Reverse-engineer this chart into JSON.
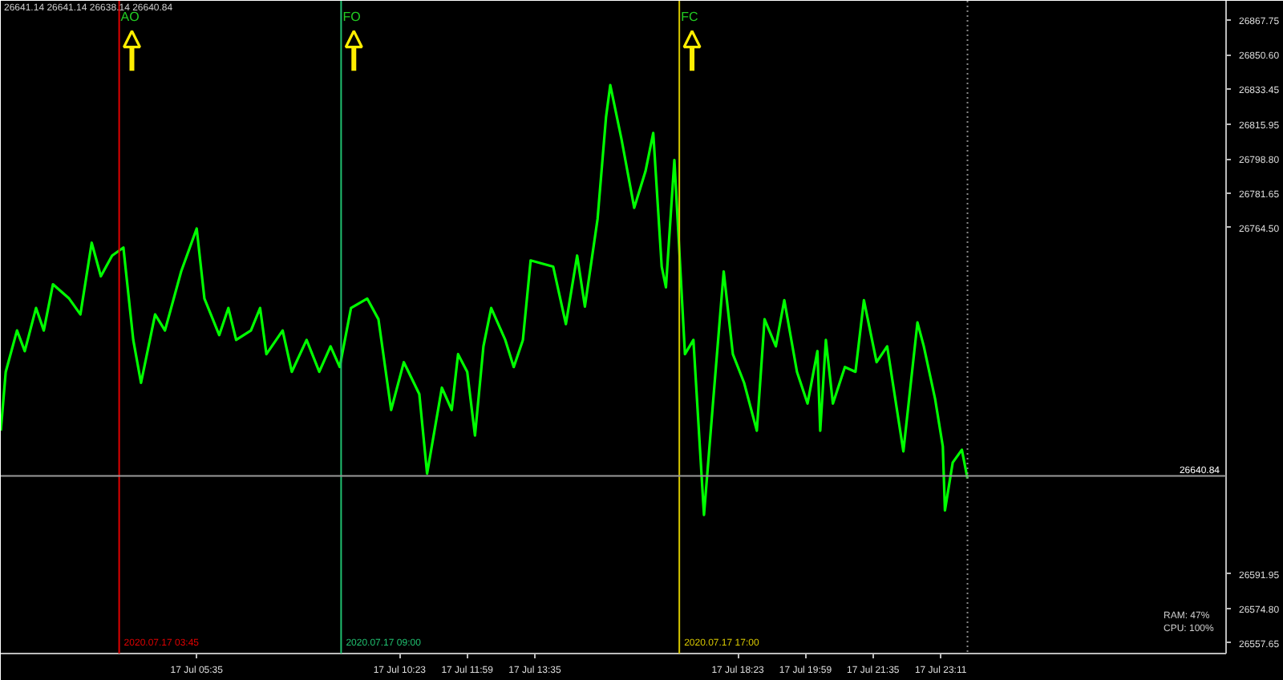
{
  "chart_data": {
    "type": "line",
    "annotations": [
      "26641.14 26641.14 26638.14 26640.84",
      {
        "text": "2020.07.17 03:45",
        "x": "2020-07-17T03:45",
        "y": 26552.4
      },
      {
        "text": "2020.07.17 09:00",
        "x": "2020-07-17T09:00",
        "y": 26552.4
      },
      {
        "text": "2020.07.17 17:00",
        "x": "2020-07-17T17:00",
        "y": 26552.4
      },
      "RAM: 47%",
      "CPU: 100%"
    ],
    "x": [
      "2020-07-17T00:57",
      "2020-07-17T01:04",
      "2020-07-17T01:20",
      "2020-07-17T01:31",
      "2020-07-17T01:47",
      "2020-07-17T01:58",
      "2020-07-17T02:11",
      "2020-07-17T02:34",
      "2020-07-17T02:50",
      "2020-07-17T03:06",
      "2020-07-17T03:19",
      "2020-07-17T03:35",
      "2020-07-17T03:51",
      "2020-07-17T04:05",
      "2020-07-17T04:16",
      "2020-07-17T04:36",
      "2020-07-17T04:50",
      "2020-07-17T05:13",
      "2020-07-17T05:35",
      "2020-07-17T05:46",
      "2020-07-17T06:07",
      "2020-07-17T06:20",
      "2020-07-17T06:31",
      "2020-07-17T06:52",
      "2020-07-17T07:05",
      "2020-07-17T07:14",
      "2020-07-17T07:37",
      "2020-07-17T07:50",
      "2020-07-17T08:11",
      "2020-07-17T08:29",
      "2020-07-17T08:45",
      "2020-07-17T08:58",
      "2020-07-17T09:14",
      "2020-07-17T09:37",
      "2020-07-17T09:53",
      "2020-07-17T10:11",
      "2020-07-17T10:29",
      "2020-07-17T10:51",
      "2020-07-17T11:02",
      "2020-07-17T11:23",
      "2020-07-17T11:37",
      "2020-07-17T11:46",
      "2020-07-17T11:59",
      "2020-07-17T12:10",
      "2020-07-17T12:22",
      "2020-07-17T12:33",
      "2020-07-17T12:53",
      "2020-07-17T13:05",
      "2020-07-17T13:18",
      "2020-07-17T13:29",
      "2020-07-17T14:01",
      "2020-07-17T14:19",
      "2020-07-17T14:35",
      "2020-07-17T14:46",
      "2020-07-17T15:04",
      "2020-07-17T15:16",
      "2020-07-17T15:22",
      "2020-07-17T15:38",
      "2020-07-17T15:56",
      "2020-07-17T16:12",
      "2020-07-17T16:23",
      "2020-07-17T16:35",
      "2020-07-17T16:41",
      "2020-07-17T16:53",
      "2020-07-17T17:02",
      "2020-07-17T17:08",
      "2020-07-17T17:20",
      "2020-07-17T17:35",
      "2020-07-17T17:47",
      "2020-07-17T18:03",
      "2020-07-17T18:16",
      "2020-07-17T18:32",
      "2020-07-17T18:50",
      "2020-07-17T19:01",
      "2020-07-17T19:17",
      "2020-07-17T19:29",
      "2020-07-17T19:47",
      "2020-07-17T20:02",
      "2020-07-17T20:16",
      "2020-07-17T20:20",
      "2020-07-17T20:28",
      "2020-07-17T20:38",
      "2020-07-17T20:55",
      "2020-07-17T21:10",
      "2020-07-17T21:22",
      "2020-07-17T21:40",
      "2020-07-17T21:55",
      "2020-07-17T22:18",
      "2020-07-17T22:38",
      "2020-07-17T22:47",
      "2020-07-17T23:03",
      "2020-07-17T23:14",
      "2020-07-17T23:17",
      "2020-07-17T23:28",
      "2020-07-17T23:41",
      "2020-07-17T23:49"
    ],
    "series": [
      {
        "color": "#00ff00",
        "values": [
          26663.4,
          26692.7,
          26713.3,
          26703.0,
          26724.5,
          26713.3,
          26736.3,
          26729.2,
          26721.3,
          26757.0,
          26740.3,
          26750.6,
          26754.6,
          26708.6,
          26687.2,
          26721.3,
          26713.3,
          26742.7,
          26764.1,
          26729.2,
          26711.0,
          26724.5,
          26708.6,
          26713.3,
          26724.5,
          26701.5,
          26713.3,
          26692.7,
          26708.6,
          26692.7,
          26705.4,
          26695.1,
          26724.5,
          26729.2,
          26718.9,
          26673.7,
          26697.5,
          26681.6,
          26642.0,
          26684.8,
          26673.7,
          26701.5,
          26692.7,
          26661.0,
          26705.4,
          26724.5,
          26708.6,
          26695.1,
          26708.6,
          26748.2,
          26745.1,
          26716.5,
          26750.6,
          26725.2,
          26768.9,
          26819.6,
          26835.5,
          26808.5,
          26774.4,
          26792.6,
          26811.7,
          26745.1,
          26734.8,
          26798.2,
          26740.3,
          26701.5,
          26708.6,
          26621.4,
          26673.7,
          26742.7,
          26701.5,
          26687.2,
          26663.4,
          26718.9,
          26705.4,
          26728.4,
          26692.7,
          26676.9,
          26703.0,
          26663.4,
          26708.6,
          26676.9,
          26695.1,
          26692.7,
          26728.4,
          26697.5,
          26705.4,
          26653.1,
          26717.3,
          26705.4,
          26679.3,
          26655.5,
          26623.7,
          26647.5,
          26653.9,
          26639.6
        ]
      }
    ],
    "xlim": [
      "2020-07-17T00:57",
      "2020-07-18T05:56"
    ],
    "ylim": [
      26552.4,
      26877.5
    ],
    "xticks": [
      {
        "value": "2020-07-17T05:35",
        "label": "17 Jul 05:35"
      },
      {
        "value": "2020-07-17T10:23",
        "label": "17 Jul 10:23"
      },
      {
        "value": "2020-07-17T11:59",
        "label": "17 Jul 11:59"
      },
      {
        "value": "2020-07-17T13:35",
        "label": "17 Jul 13:35"
      },
      {
        "value": "2020-07-17T18:23",
        "label": "17 Jul 18:23"
      },
      {
        "value": "2020-07-17T19:59",
        "label": "17 Jul 19:59"
      },
      {
        "value": "2020-07-17T21:35",
        "label": "17 Jul 21:35"
      },
      {
        "value": "2020-07-17T23:11",
        "label": "17 Jul 23:11"
      }
    ],
    "yticks": [
      {
        "value": 26867.75,
        "label": "26867.75"
      },
      {
        "value": 26850.6,
        "label": "26850.60"
      },
      {
        "value": 26833.45,
        "label": "26833.45"
      },
      {
        "value": 26815.95,
        "label": "26815.95"
      },
      {
        "value": 26798.8,
        "label": "26798.80"
      },
      {
        "value": 26781.65,
        "label": "26781.65"
      },
      {
        "value": 26764.5,
        "label": "26764.50"
      },
      {
        "value": 26591.95,
        "label": "26591.95"
      },
      {
        "value": 26574.8,
        "label": "26574.80"
      },
      {
        "value": 26557.65,
        "label": "26557.65"
      }
    ],
    "ref_lines": [
      {
        "axis": "x",
        "value": "2020-07-17T03:45",
        "label": "AO",
        "color": "#e00000"
      },
      {
        "axis": "x",
        "value": "2020-07-17T09:00",
        "label": "FO",
        "color": "#20c070"
      },
      {
        "axis": "x",
        "value": "2020-07-17T17:00",
        "label": "FC",
        "color": "#d8c800"
      },
      {
        "axis": "x",
        "value": "2020-07-17T23:49",
        "color": "#8a8a8a",
        "line_style": "dotted"
      },
      {
        "axis": "y",
        "value": 26640.84,
        "label": "26640.84",
        "color": "#9a9a9a"
      }
    ],
    "grid": false,
    "marker": "none",
    "line_style": "solid"
  }
}
